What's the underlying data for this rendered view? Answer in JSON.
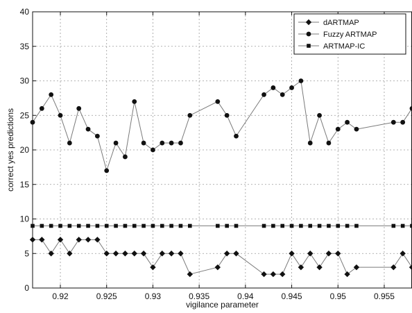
{
  "chart_data": {
    "type": "line",
    "xlabel": "vigilance parameter",
    "ylabel": "correct yes predictions",
    "xlim": [
      0.917,
      0.958
    ],
    "ylim": [
      0,
      40
    ],
    "xticks": [
      0.92,
      0.925,
      0.93,
      0.935,
      0.94,
      0.945,
      0.95,
      0.955
    ],
    "xtick_labels": [
      "0.92",
      "0.925",
      "0.93",
      "0.935",
      "0.94",
      "0.945",
      "0.95",
      "0.955"
    ],
    "yticks": [
      0,
      5,
      10,
      15,
      20,
      25,
      30,
      35,
      40
    ],
    "ytick_labels": [
      "0",
      "5",
      "10",
      "15",
      "20",
      "25",
      "30",
      "35",
      "40"
    ],
    "grid": true,
    "legend_position": "top-right",
    "series": [
      {
        "name": "dARTMAP",
        "marker": "diamond",
        "color": "#111111",
        "x": [
          0.917,
          0.918,
          0.919,
          0.92,
          0.921,
          0.922,
          0.923,
          0.924,
          0.925,
          0.926,
          0.927,
          0.928,
          0.929,
          0.93,
          0.931,
          0.932,
          0.933,
          0.934,
          0.937,
          0.938,
          0.939,
          0.942,
          0.943,
          0.944,
          0.945,
          0.946,
          0.947,
          0.948,
          0.949,
          0.95,
          0.951,
          0.952,
          0.956,
          0.957,
          0.958
        ],
        "values": [
          7,
          7,
          5,
          7,
          5,
          7,
          7,
          7,
          5,
          5,
          5,
          5,
          5,
          3,
          5,
          5,
          5,
          2,
          3,
          5,
          5,
          2,
          2,
          2,
          5,
          3,
          5,
          3,
          5,
          5,
          2,
          3,
          3,
          5,
          3
        ]
      },
      {
        "name": "Fuzzy ARTMAP",
        "marker": "circle",
        "color": "#111111",
        "x": [
          0.917,
          0.918,
          0.919,
          0.92,
          0.921,
          0.922,
          0.923,
          0.924,
          0.925,
          0.926,
          0.927,
          0.928,
          0.929,
          0.93,
          0.931,
          0.932,
          0.933,
          0.934,
          0.937,
          0.938,
          0.939,
          0.942,
          0.943,
          0.944,
          0.945,
          0.946,
          0.947,
          0.948,
          0.949,
          0.95,
          0.951,
          0.952,
          0.956,
          0.957,
          0.958
        ],
        "values": [
          24,
          26,
          28,
          25,
          21,
          26,
          23,
          22,
          17,
          21,
          19,
          27,
          21,
          20,
          21,
          21,
          21,
          25,
          27,
          25,
          22,
          28,
          29,
          28,
          29,
          30,
          21,
          25,
          21,
          23,
          24,
          23,
          24,
          24,
          26
        ]
      },
      {
        "name": "ARTMAP-IC",
        "marker": "square",
        "color": "#111111",
        "x": [
          0.917,
          0.918,
          0.919,
          0.92,
          0.921,
          0.922,
          0.923,
          0.924,
          0.925,
          0.926,
          0.927,
          0.928,
          0.929,
          0.93,
          0.931,
          0.932,
          0.933,
          0.934,
          0.937,
          0.938,
          0.939,
          0.942,
          0.943,
          0.944,
          0.945,
          0.946,
          0.947,
          0.948,
          0.949,
          0.95,
          0.951,
          0.952,
          0.956,
          0.957,
          0.958
        ],
        "values": [
          9,
          9,
          9,
          9,
          9,
          9,
          9,
          9,
          9,
          9,
          9,
          9,
          9,
          9,
          9,
          9,
          9,
          9,
          9,
          9,
          9,
          9,
          9,
          9,
          9,
          9,
          9,
          9,
          9,
          9,
          9,
          9,
          9,
          9,
          9
        ]
      }
    ]
  }
}
